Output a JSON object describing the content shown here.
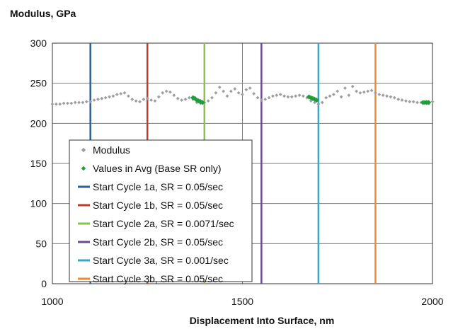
{
  "chart_data": {
    "type": "scatter",
    "title": "",
    "ylabel": "Modulus, GPa",
    "xlabel": "Displacement Into Surface, nm",
    "xlim": [
      1000,
      2000
    ],
    "ylim": [
      0,
      300
    ],
    "x_ticks": [
      1000,
      1500,
      2000
    ],
    "y_ticks": [
      0,
      50,
      100,
      150,
      200,
      250,
      300
    ],
    "grid": "vertical and horizontal major gridlines",
    "legend_placement": "lower-left inside plot",
    "series": [
      {
        "name": "Modulus",
        "color": "#9e9e9e",
        "marker": "diamond",
        "x": [
          1000,
          1010,
          1020,
          1030,
          1040,
          1050,
          1060,
          1070,
          1080,
          1090,
          1100,
          1110,
          1120,
          1130,
          1140,
          1150,
          1160,
          1170,
          1180,
          1190,
          1200,
          1210,
          1220,
          1230,
          1240,
          1250,
          1260,
          1270,
          1280,
          1290,
          1300,
          1310,
          1320,
          1330,
          1340,
          1350,
          1360,
          1370,
          1380,
          1390,
          1400,
          1410,
          1420,
          1430,
          1440,
          1450,
          1460,
          1470,
          1480,
          1490,
          1500,
          1510,
          1520,
          1530,
          1540,
          1550,
          1560,
          1570,
          1580,
          1590,
          1600,
          1610,
          1620,
          1630,
          1640,
          1650,
          1660,
          1670,
          1680,
          1690,
          1700,
          1710,
          1720,
          1730,
          1740,
          1750,
          1760,
          1770,
          1780,
          1790,
          1800,
          1810,
          1820,
          1830,
          1840,
          1850,
          1860,
          1870,
          1880,
          1890,
          1900,
          1910,
          1920,
          1930,
          1940,
          1950,
          1960,
          1970,
          1980,
          1990,
          2000
        ],
        "y": [
          224,
          224,
          224,
          225,
          225,
          225,
          226,
          226,
          226,
          227,
          227,
          229,
          230,
          231,
          232,
          233,
          234,
          236,
          237,
          238,
          234,
          230,
          228,
          227,
          230,
          231,
          229,
          228,
          233,
          238,
          240,
          239,
          235,
          231,
          229,
          230,
          232,
          230,
          226,
          225,
          226,
          228,
          232,
          238,
          245,
          240,
          234,
          240,
          243,
          238,
          236,
          242,
          244,
          237,
          232,
          229,
          230,
          232,
          234,
          235,
          236,
          234,
          233,
          233,
          234,
          235,
          234,
          232,
          228,
          226,
          224,
          226,
          232,
          234,
          236,
          240,
          233,
          244,
          235,
          246,
          240,
          238,
          239,
          240,
          241,
          238,
          236,
          235,
          234,
          233,
          232,
          230,
          229,
          228,
          227,
          227,
          226,
          226,
          226,
          227,
          227
        ]
      },
      {
        "name": "Values in Avg (Base SR only)",
        "color": "#1f9e3a",
        "marker": "diamond",
        "x": [
          1370,
          1375,
          1380,
          1385,
          1390,
          1395,
          1675,
          1680,
          1685,
          1690,
          1695,
          1975,
          1980,
          1985,
          1990
        ],
        "y": [
          232,
          231,
          229,
          228,
          227,
          226,
          233,
          232,
          231,
          230,
          229,
          226,
          226,
          226,
          226
        ]
      }
    ],
    "vertical_lines": [
      {
        "name": "Start Cycle 1a, SR = 0.05/sec",
        "x": 1100,
        "color": "#2e5f9b"
      },
      {
        "name": "Start Cycle 1b, SR = 0.05/sec",
        "x": 1250,
        "color": "#c0392b"
      },
      {
        "name": "Start Cycle 2a, SR = 0.0071/sec",
        "x": 1400,
        "color": "#8bc34a"
      },
      {
        "name": "Start Cycle 2b, SR = 0.05/sec",
        "x": 1550,
        "color": "#6a4c93"
      },
      {
        "name": "Start Cycle 3a, SR = 0.001/sec",
        "x": 1700,
        "color": "#3aa6c6"
      },
      {
        "name": "Start Cycle 3b, SR = 0.05/sec",
        "x": 1850,
        "color": "#ef8a2e"
      }
    ]
  }
}
